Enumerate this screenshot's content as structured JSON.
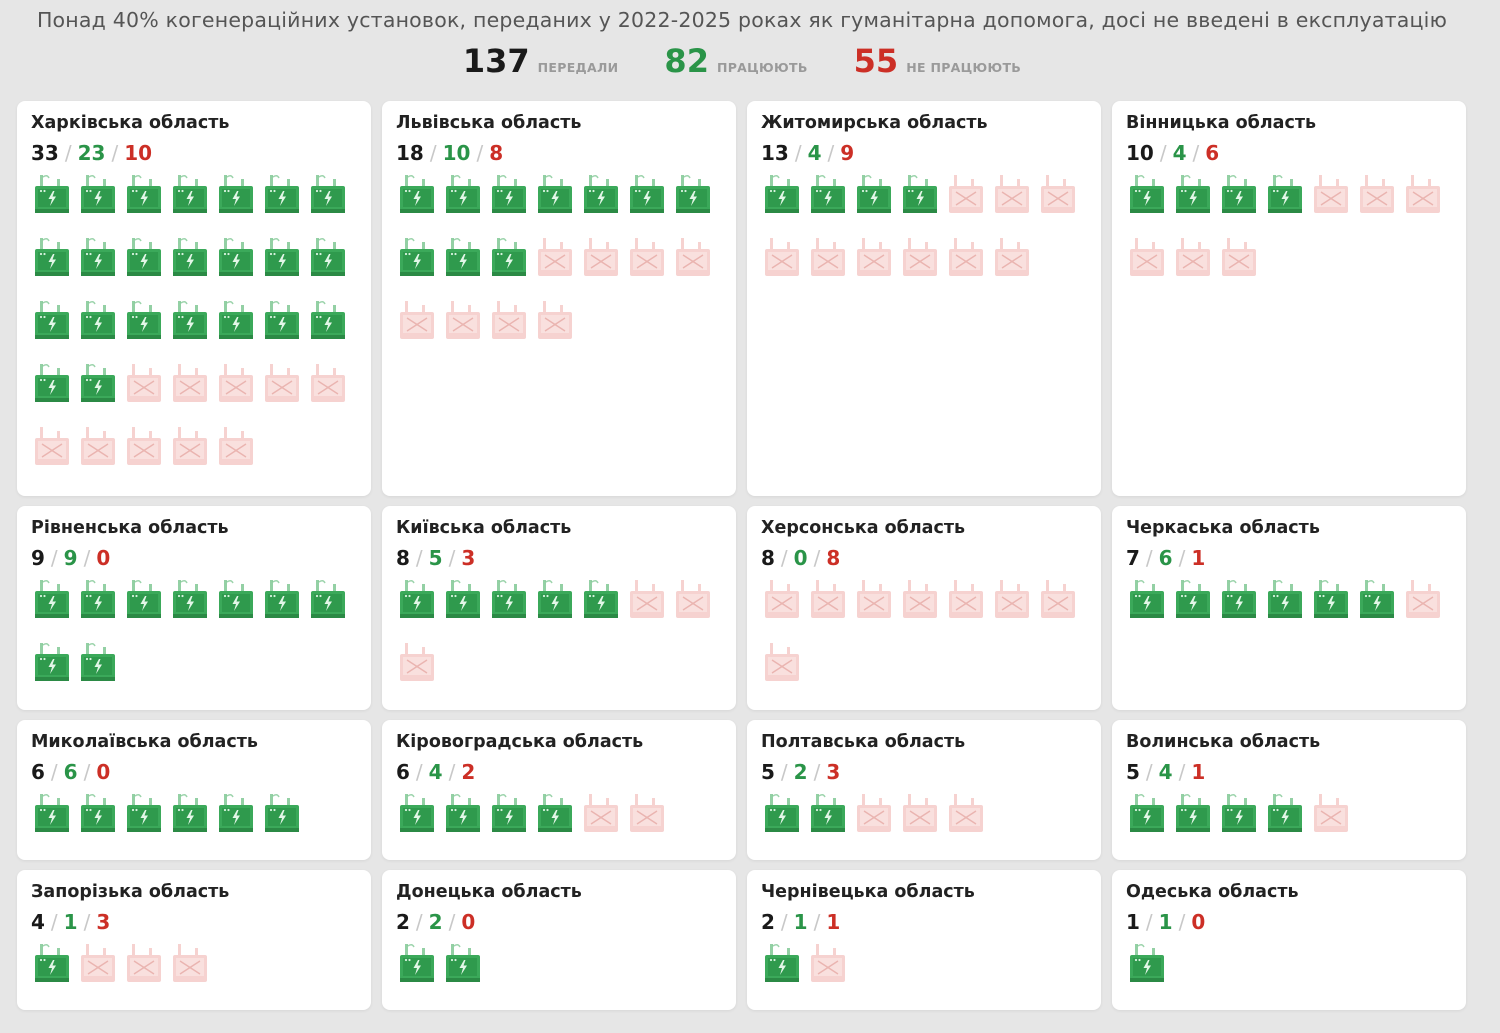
{
  "title": "Понад 40% когенераційних установок, переданих у 2022-2025 роках як гуманітарна допомога, досі не введені в експлуатацію",
  "summary": {
    "total": "137",
    "total_label": "ПЕРЕДАЛИ",
    "working": "82",
    "working_label": "ПРАЦЮЮТЬ",
    "not_working": "55",
    "not_working_label": "НЕ ПРАЦЮЮТЬ"
  },
  "colors": {
    "working": "#2a9448",
    "not_working": "#cc2f26",
    "working_icon": "#3ba95a",
    "not_working_icon": "#f6d2d0",
    "background": "#e6e6e6"
  },
  "icons": {
    "working": "cogeneration-unit-icon",
    "not_working": "broken-unit-icon"
  },
  "chart_data": {
    "type": "table",
    "columns": [
      "total",
      "working",
      "not_working"
    ],
    "regions": [
      {
        "name": "Харківська область",
        "total": 33,
        "working": 23,
        "not_working": 10
      },
      {
        "name": "Львівська область",
        "total": 18,
        "working": 10,
        "not_working": 8
      },
      {
        "name": "Житомирська область",
        "total": 13,
        "working": 4,
        "not_working": 9
      },
      {
        "name": "Вінницька область",
        "total": 10,
        "working": 4,
        "not_working": 6
      },
      {
        "name": "Рівненська область",
        "total": 9,
        "working": 9,
        "not_working": 0
      },
      {
        "name": "Київська область",
        "total": 8,
        "working": 5,
        "not_working": 3
      },
      {
        "name": "Херсонська область",
        "total": 8,
        "working": 0,
        "not_working": 8
      },
      {
        "name": "Черкаська область",
        "total": 7,
        "working": 6,
        "not_working": 1
      },
      {
        "name": "Миколаївська область",
        "total": 6,
        "working": 6,
        "not_working": 0
      },
      {
        "name": "Кіровоградська область",
        "total": 6,
        "working": 4,
        "not_working": 2
      },
      {
        "name": "Полтавська область",
        "total": 5,
        "working": 2,
        "not_working": 3
      },
      {
        "name": "Волинська область",
        "total": 5,
        "working": 4,
        "not_working": 1
      },
      {
        "name": "Запорізька область",
        "total": 4,
        "working": 1,
        "not_working": 3
      },
      {
        "name": "Донецька область",
        "total": 2,
        "working": 2,
        "not_working": 0
      },
      {
        "name": "Чернівецька область",
        "total": 2,
        "working": 1,
        "not_working": 1
      },
      {
        "name": "Одеська область",
        "total": 1,
        "working": 1,
        "not_working": 0
      }
    ]
  }
}
